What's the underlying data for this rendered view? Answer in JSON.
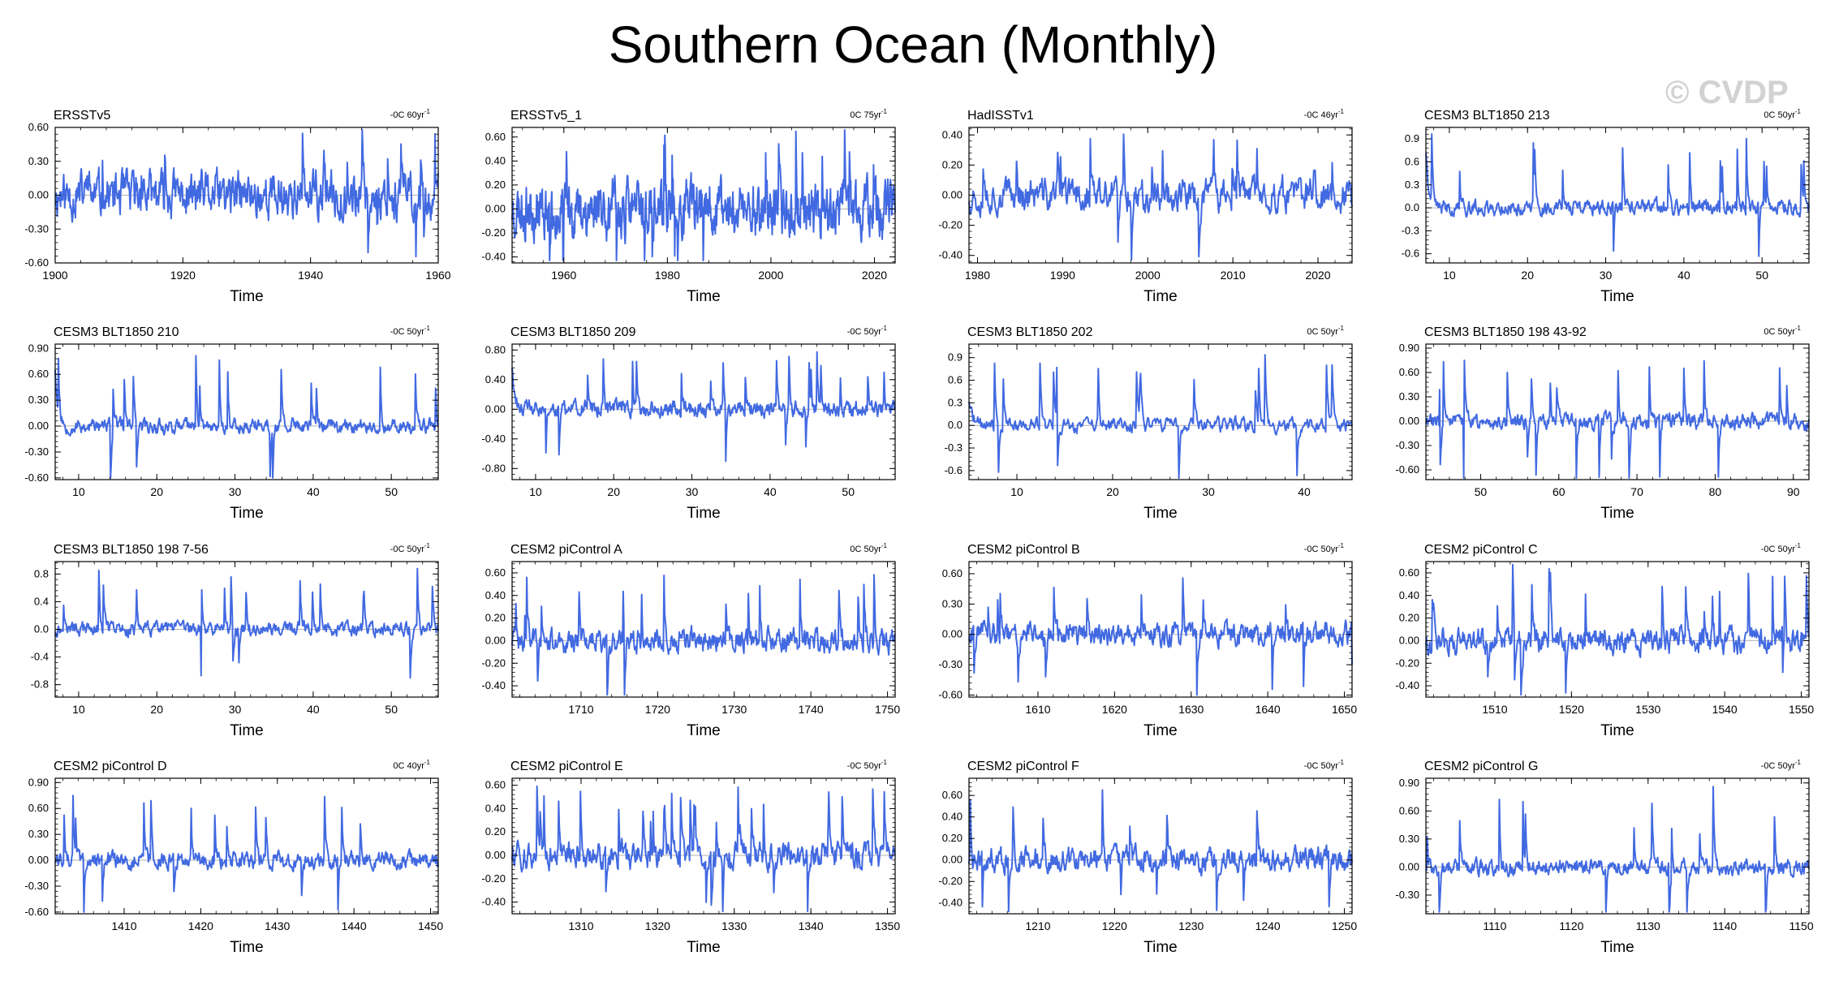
{
  "title": "Southern Ocean (Monthly)",
  "watermark": "© CVDP",
  "line_color": "#4169e1",
  "chart_data": [
    {
      "type": "line",
      "title": "ERSSTv5",
      "trend": "-0C 60yr",
      "xlabel": "Time",
      "xlim": [
        1900,
        1960
      ],
      "xticks": [
        1900,
        1920,
        1940,
        1960
      ],
      "ylim": [
        -0.6,
        0.6
      ],
      "yticks": [
        "-0.60",
        "-0.30",
        "0.00",
        "0.30",
        "0.60"
      ],
      "seed": 11,
      "amp": 0.14,
      "spike_rate": 0.02,
      "start_spike": 0
    },
    {
      "type": "line",
      "title": "ERSSTv5_1",
      "trend": "0C 75yr",
      "xlabel": "Time",
      "xlim": [
        1950,
        2024
      ],
      "xticks": [
        1960,
        1980,
        2000,
        2020
      ],
      "ylim": [
        -0.45,
        0.68
      ],
      "yticks": [
        "-0.40",
        "-0.20",
        "0.00",
        "0.20",
        "0.40",
        "0.60"
      ],
      "seed": 23,
      "amp": 0.16,
      "spike_rate": 0.02,
      "start_spike": 0
    },
    {
      "type": "line",
      "title": "HadISSTv1",
      "trend": "-0C 46yr",
      "xlabel": "Time",
      "xlim": [
        1979,
        2024
      ],
      "xticks": [
        1980,
        1990,
        2000,
        2010,
        2020
      ],
      "ylim": [
        -0.45,
        0.45
      ],
      "yticks": [
        "-0.40",
        "-0.20",
        "0.00",
        "0.20",
        "0.40"
      ],
      "seed": 37,
      "amp": 0.08,
      "spike_rate": 0.03,
      "start_spike": 0
    },
    {
      "type": "line",
      "title": "CESM3 BLT1850 213",
      "trend": "0C 50yr",
      "xlabel": "Time",
      "xlim": [
        7,
        56
      ],
      "xticks": [
        10,
        20,
        30,
        40,
        50
      ],
      "ylim": [
        -0.72,
        1.05
      ],
      "yticks": [
        "-0.6",
        "-0.3",
        "0.0",
        "0.3",
        "0.6",
        "0.9"
      ],
      "seed": 41,
      "amp": 0.07,
      "spike_rate": 0.035,
      "start_spike": 0.75
    },
    {
      "type": "line",
      "title": "CESM3 BLT1850 210",
      "trend": "-0C 50yr",
      "xlabel": "Time",
      "xlim": [
        7,
        56
      ],
      "xticks": [
        10,
        20,
        30,
        40,
        50
      ],
      "ylim": [
        -0.62,
        0.95
      ],
      "yticks": [
        "-0.60",
        "-0.30",
        "0.00",
        "0.30",
        "0.60",
        "0.90"
      ],
      "seed": 53,
      "amp": 0.06,
      "spike_rate": 0.035,
      "start_spike": 0.68
    },
    {
      "type": "line",
      "title": "CESM3 BLT1850 209",
      "trend": "-0C 50yr",
      "xlabel": "Time",
      "xlim": [
        7,
        56
      ],
      "xticks": [
        10,
        20,
        30,
        40,
        50
      ],
      "ylim": [
        -0.95,
        0.88
      ],
      "yticks": [
        "-0.80",
        "-0.40",
        "0.00",
        "0.40",
        "0.80"
      ],
      "seed": 61,
      "amp": 0.08,
      "spike_rate": 0.035,
      "start_spike": 0.6
    },
    {
      "type": "line",
      "title": "CESM3 BLT1850 202",
      "trend": "0C 50yr",
      "xlabel": "Time",
      "xlim": [
        5,
        45
      ],
      "xticks": [
        10,
        20,
        30,
        40
      ],
      "ylim": [
        -0.72,
        1.08
      ],
      "yticks": [
        "-0.6",
        "-0.3",
        "0.0",
        "0.3",
        "0.6",
        "0.9"
      ],
      "seed": 71,
      "amp": 0.07,
      "spike_rate": 0.03,
      "start_spike": 0.35
    },
    {
      "type": "line",
      "title": "CESM3 BLT1850 198 43-92",
      "trend": "0C 50yr",
      "xlabel": "Time",
      "xlim": [
        43,
        92
      ],
      "xticks": [
        50,
        60,
        70,
        80,
        90
      ],
      "ylim": [
        -0.72,
        0.95
      ],
      "yticks": [
        "-0.60",
        "-0.30",
        "0.00",
        "0.30",
        "0.60",
        "0.90"
      ],
      "seed": 83,
      "amp": 0.07,
      "spike_rate": 0.04,
      "start_spike": 0
    },
    {
      "type": "line",
      "title": "CESM3 BLT1850 198 7-56",
      "trend": "-0C 50yr",
      "xlabel": "Time",
      "xlim": [
        7,
        56
      ],
      "xticks": [
        10,
        20,
        30,
        40,
        50
      ],
      "ylim": [
        -0.98,
        0.98
      ],
      "yticks": [
        "-0.8",
        "-0.4",
        "0.0",
        "0.4",
        "0.8"
      ],
      "seed": 97,
      "amp": 0.07,
      "spike_rate": 0.035,
      "start_spike": 0
    },
    {
      "type": "line",
      "title": "CESM2 piControl A",
      "trend": "0C 50yr",
      "xlabel": "Time",
      "xlim": [
        1701,
        1751
      ],
      "xticks": [
        1710,
        1720,
        1730,
        1740,
        1750
      ],
      "ylim": [
        -0.5,
        0.7
      ],
      "yticks": [
        "-0.40",
        "-0.20",
        "0.00",
        "0.20",
        "0.40",
        "0.60"
      ],
      "seed": 101,
      "amp": 0.08,
      "spike_rate": 0.035,
      "start_spike": 0
    },
    {
      "type": "line",
      "title": "CESM2 piControl B",
      "trend": "-0C 50yr",
      "xlabel": "Time",
      "xlim": [
        1601,
        1651
      ],
      "xticks": [
        1610,
        1620,
        1630,
        1640,
        1650
      ],
      "ylim": [
        -0.62,
        0.72
      ],
      "yticks": [
        "-0.60",
        "-0.30",
        "0.00",
        "0.30",
        "0.60"
      ],
      "seed": 113,
      "amp": 0.08,
      "spike_rate": 0.035,
      "start_spike": 0
    },
    {
      "type": "line",
      "title": "CESM2 piControl C",
      "trend": "-0C 50yr",
      "xlabel": "Time",
      "xlim": [
        1501,
        1551
      ],
      "xticks": [
        1510,
        1520,
        1530,
        1540,
        1550
      ],
      "ylim": [
        -0.5,
        0.7
      ],
      "yticks": [
        "-0.40",
        "-0.20",
        "0.00",
        "0.20",
        "0.40",
        "0.60"
      ],
      "seed": 127,
      "amp": 0.08,
      "spike_rate": 0.035,
      "start_spike": 0
    },
    {
      "type": "line",
      "title": "CESM2 piControl D",
      "trend": "0C 40yr",
      "xlabel": "Time",
      "xlim": [
        1401,
        1451
      ],
      "xticks": [
        1410,
        1420,
        1430,
        1440,
        1450
      ],
      "ylim": [
        -0.62,
        0.95
      ],
      "yticks": [
        "-0.60",
        "-0.30",
        "0.00",
        "0.30",
        "0.60",
        "0.90"
      ],
      "seed": 131,
      "amp": 0.07,
      "spike_rate": 0.035,
      "start_spike": 0
    },
    {
      "type": "line",
      "title": "CESM2 piControl E",
      "trend": "-0C 50yr",
      "xlabel": "Time",
      "xlim": [
        1301,
        1351
      ],
      "xticks": [
        1310,
        1320,
        1330,
        1340,
        1350
      ],
      "ylim": [
        -0.5,
        0.66
      ],
      "yticks": [
        "-0.40",
        "-0.20",
        "0.00",
        "0.20",
        "0.40",
        "0.60"
      ],
      "seed": 139,
      "amp": 0.08,
      "spike_rate": 0.035,
      "start_spike": 0
    },
    {
      "type": "line",
      "title": "CESM2 piControl F",
      "trend": "-0C 50yr",
      "xlabel": "Time",
      "xlim": [
        1201,
        1251
      ],
      "xticks": [
        1210,
        1220,
        1230,
        1240,
        1250
      ],
      "ylim": [
        -0.5,
        0.76
      ],
      "yticks": [
        "-0.40",
        "-0.20",
        "0.00",
        "0.20",
        "0.40",
        "0.60"
      ],
      "seed": 149,
      "amp": 0.08,
      "spike_rate": 0.035,
      "start_spike": 0
    },
    {
      "type": "line",
      "title": "CESM2 piControl G",
      "trend": "-0C 50yr",
      "xlabel": "Time",
      "xlim": [
        1101,
        1151
      ],
      "xticks": [
        1110,
        1120,
        1130,
        1140,
        1150
      ],
      "ylim": [
        -0.5,
        0.95
      ],
      "yticks": [
        "-0.30",
        "0.00",
        "0.30",
        "0.60",
        "0.90"
      ],
      "seed": 157,
      "amp": 0.06,
      "spike_rate": 0.03,
      "start_spike": 0
    }
  ]
}
